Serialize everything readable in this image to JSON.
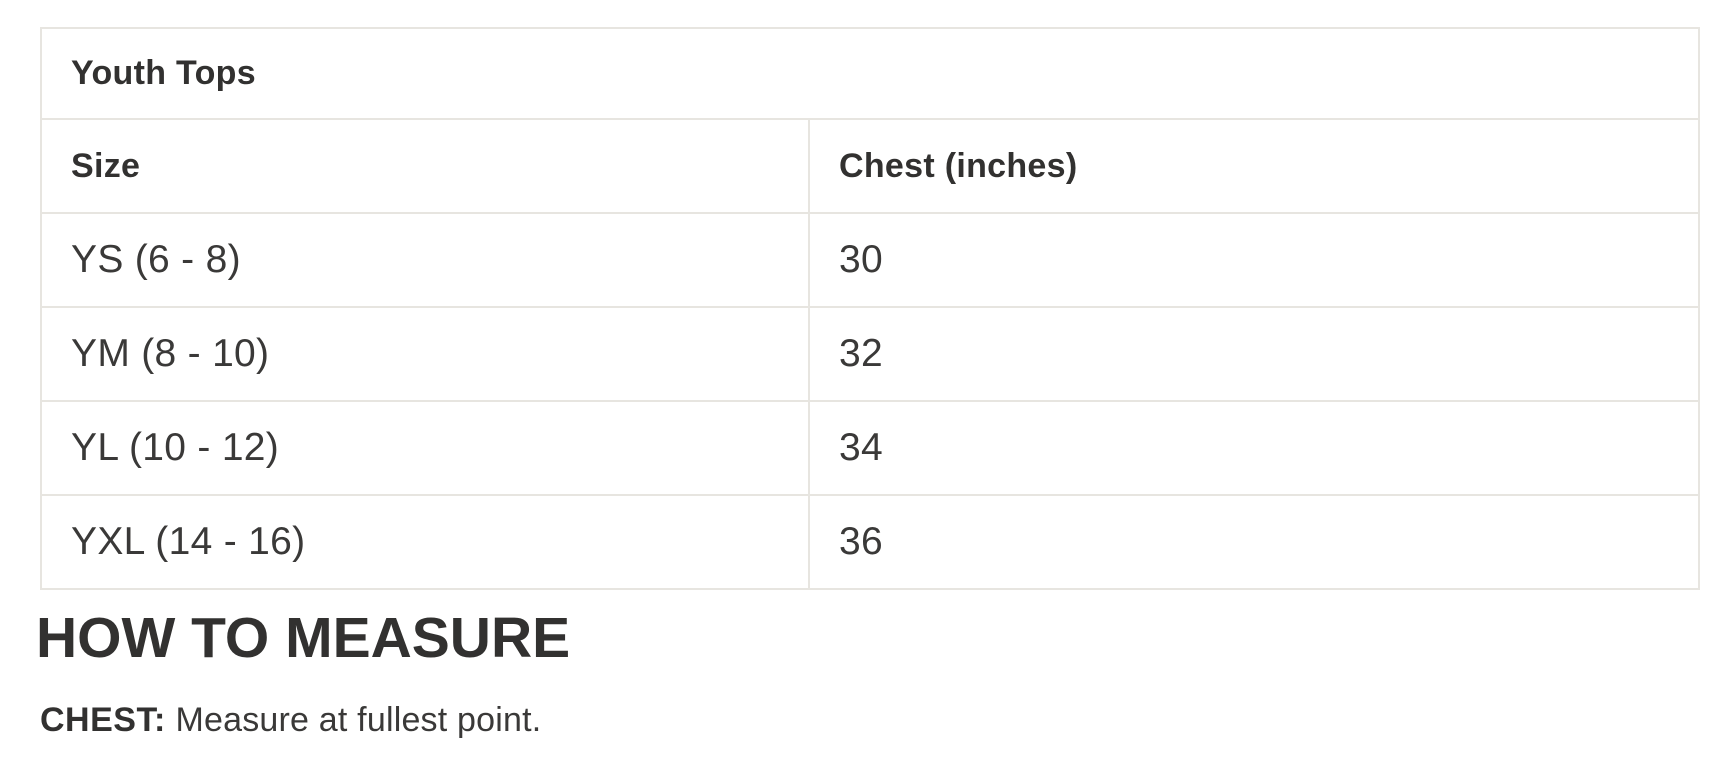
{
  "colors": {
    "text": "#323130",
    "border": "#e7e5e0",
    "background": "#ffffff"
  },
  "size_chart": {
    "title": "Youth Tops",
    "columns": [
      "Size",
      "Chest (inches)"
    ],
    "rows": [
      {
        "size": "YS (6 - 8)",
        "chest": "30"
      },
      {
        "size": "YM (8 - 10)",
        "chest": "32"
      },
      {
        "size": "YL (10 - 12)",
        "chest": "34"
      },
      {
        "size": "YXL (14 - 16)",
        "chest": "36"
      }
    ]
  },
  "how_to_measure": {
    "heading": "HOW TO MEASURE",
    "instructions": [
      {
        "label": "CHEST:",
        "text": "Measure at fullest point."
      }
    ]
  }
}
